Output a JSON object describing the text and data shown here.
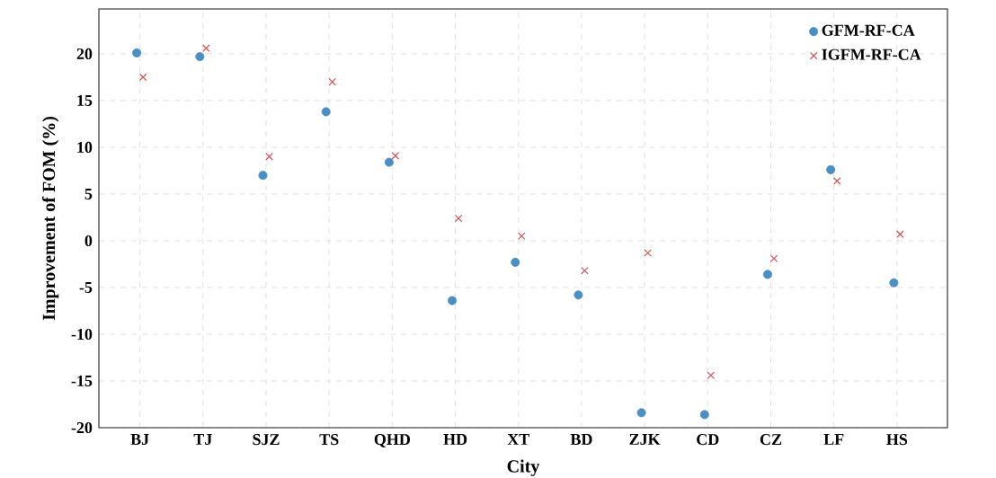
{
  "chart_data": {
    "type": "scatter",
    "xlabel": "City",
    "ylabel": "Improvement of FOM (%)",
    "categories": [
      "BJ",
      "TJ",
      "SJZ",
      "TS",
      "QHD",
      "HD",
      "XT",
      "BD",
      "ZJK",
      "CD",
      "CZ",
      "LF",
      "HS"
    ],
    "series": [
      {
        "name": "GFM-RF-CA",
        "color": "#4a90c4",
        "marker": "circle",
        "values": [
          20.1,
          19.7,
          7.0,
          13.8,
          8.4,
          -6.4,
          -2.3,
          -5.8,
          -18.4,
          -18.6,
          -3.6,
          7.6,
          -4.5
        ]
      },
      {
        "name": "IGFM-RF-CA",
        "color": "#d0504f",
        "marker": "cross",
        "values": [
          17.5,
          20.6,
          9.0,
          17.0,
          9.1,
          2.4,
          0.5,
          -3.2,
          -1.3,
          -14.4,
          -1.9,
          6.4,
          0.7
        ]
      }
    ],
    "ylim": [
      -20,
      24.8
    ],
    "yticks": [
      -20,
      -15,
      -10,
      -5,
      0,
      5,
      10,
      15,
      20
    ],
    "grid": true,
    "legend": "top right"
  }
}
